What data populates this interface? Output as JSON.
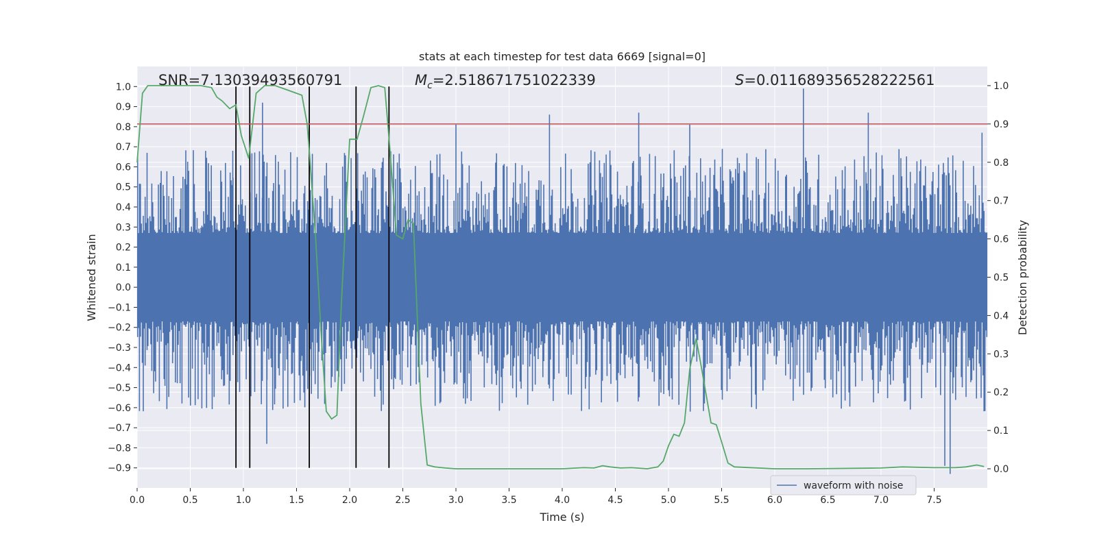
{
  "chart_data": {
    "type": "line",
    "title": "stats at each timestep for test data 6669 [signal=0]",
    "xlabel": "Time (s)",
    "ylabel_left": "Whitened strain",
    "ylabel_right": "Detection probability",
    "xlim": [
      0,
      8
    ],
    "ylim_left": [
      -1.0,
      1.1
    ],
    "ylim_right": [
      -0.05,
      1.05
    ],
    "x_ticks": [
      0.0,
      0.5,
      1.0,
      1.5,
      2.0,
      2.5,
      3.0,
      3.5,
      4.0,
      4.5,
      5.0,
      5.5,
      6.0,
      6.5,
      7.0,
      7.5
    ],
    "x_tick_labels": [
      "0.0",
      "0.5",
      "1.0",
      "1.5",
      "2.0",
      "2.5",
      "3.0",
      "3.5",
      "4.0",
      "4.5",
      "5.0",
      "5.5",
      "6.0",
      "6.5",
      "7.0",
      "7.5"
    ],
    "y_ticks_left": [
      1.0,
      0.9,
      0.8,
      0.7,
      0.6,
      0.5,
      0.4,
      0.3,
      0.2,
      0.1,
      0.0,
      -0.1,
      -0.2,
      -0.3,
      -0.4,
      -0.5,
      -0.6,
      -0.7,
      -0.8,
      -0.9
    ],
    "y_tick_labels_left": [
      "1.0",
      "0.9",
      "0.8",
      "0.7",
      "0.6",
      "0.5",
      "0.4",
      "0.3",
      "0.2",
      "0.1",
      "0.0",
      "−0.1",
      "−0.2",
      "−0.3",
      "−0.4",
      "−0.5",
      "−0.6",
      "−0.7",
      "−0.8",
      "−0.9"
    ],
    "y_ticks_right": [
      0.0,
      0.1,
      0.2,
      0.3,
      0.4,
      0.5,
      0.6,
      0.7,
      0.8,
      0.9,
      1.0
    ],
    "y_tick_labels_right": [
      "0.0",
      "0.1",
      "0.2",
      "0.3",
      "0.4",
      "0.5",
      "0.6",
      "0.7",
      "0.8",
      "0.9",
      "1.0"
    ],
    "waveform": {
      "name": "waveform with noise",
      "color": "#4c72b0",
      "sample_count": 900,
      "core_band": [
        -0.15,
        0.25
      ],
      "spikes": [
        {
          "x": 0.9,
          "y": 0.68
        },
        {
          "x": 1.18,
          "y": 0.92
        },
        {
          "x": 1.22,
          "y": -0.78
        },
        {
          "x": 3.0,
          "y": 0.81
        },
        {
          "x": 3.88,
          "y": 0.86
        },
        {
          "x": 4.72,
          "y": 0.87
        },
        {
          "x": 5.2,
          "y": 0.81
        },
        {
          "x": 6.27,
          "y": 0.99
        },
        {
          "x": 6.88,
          "y": 0.87
        },
        {
          "x": 7.6,
          "y": -0.89
        },
        {
          "x": 7.65,
          "y": -0.93
        },
        {
          "x": 7.95,
          "y": 0.77
        }
      ]
    },
    "threshold": {
      "value": 0.9,
      "axis": "right",
      "color": "#c44e52"
    },
    "vertical_markers": {
      "x": [
        0.93,
        1.06,
        1.62,
        2.06,
        2.37
      ],
      "ymin": -0.9,
      "ymax": 1.0,
      "color": "#000000"
    },
    "probability": {
      "name": "detection probability",
      "color": "#55a868",
      "x": [
        0.0,
        0.05,
        0.1,
        0.2,
        0.3,
        0.4,
        0.5,
        0.6,
        0.7,
        0.75,
        0.8,
        0.87,
        0.93,
        0.98,
        1.05,
        1.12,
        1.2,
        1.3,
        1.4,
        1.5,
        1.55,
        1.6,
        1.62,
        1.68,
        1.73,
        1.78,
        1.83,
        1.88,
        1.92,
        2.0,
        2.07,
        2.13,
        2.2,
        2.27,
        2.33,
        2.38,
        2.44,
        2.5,
        2.55,
        2.6,
        2.67,
        2.73,
        2.8,
        2.9,
        3.0,
        3.5,
        4.0,
        4.2,
        4.3,
        4.38,
        4.45,
        4.55,
        4.65,
        4.8,
        4.9,
        4.95,
        5.0,
        5.05,
        5.1,
        5.15,
        5.2,
        5.26,
        5.3,
        5.35,
        5.4,
        5.45,
        5.5,
        5.56,
        5.62,
        6.0,
        6.3,
        7.0,
        7.2,
        7.5,
        7.7,
        7.8,
        7.9,
        7.97
      ],
      "y": [
        0.8,
        0.98,
        1.0,
        1.0,
        1.0,
        1.0,
        1.0,
        1.0,
        0.995,
        0.97,
        0.96,
        0.94,
        0.95,
        0.87,
        0.81,
        0.98,
        1.0,
        1.0,
        0.99,
        0.98,
        0.975,
        0.9,
        0.83,
        0.6,
        0.36,
        0.15,
        0.13,
        0.14,
        0.42,
        0.86,
        0.86,
        0.92,
        0.995,
        1.0,
        0.995,
        0.83,
        0.61,
        0.6,
        0.65,
        0.64,
        0.17,
        0.01,
        0.005,
        0.002,
        0.0,
        0.0,
        0.0,
        0.003,
        0.002,
        0.008,
        0.005,
        0.002,
        0.003,
        0.0,
        0.005,
        0.02,
        0.06,
        0.09,
        0.085,
        0.12,
        0.26,
        0.34,
        0.28,
        0.2,
        0.12,
        0.115,
        0.07,
        0.015,
        0.005,
        0.0,
        0.0,
        0.002,
        0.005,
        0.003,
        0.003,
        0.005,
        0.01,
        0.006
      ]
    },
    "annotations": [
      {
        "id": "snr",
        "text": "SNR=7.13039493560791"
      },
      {
        "id": "mc",
        "prefix": "M",
        "subscript": "c",
        "text": "=2.518671751022339"
      },
      {
        "id": "s",
        "prefix": "S",
        "text": "=0.011689356528222561"
      }
    ],
    "legend": {
      "entries": [
        "waveform with noise"
      ],
      "position": "lower-right"
    },
    "grid": true,
    "colors": {
      "background": "#eaeaf2",
      "grid": "#ffffff"
    }
  }
}
